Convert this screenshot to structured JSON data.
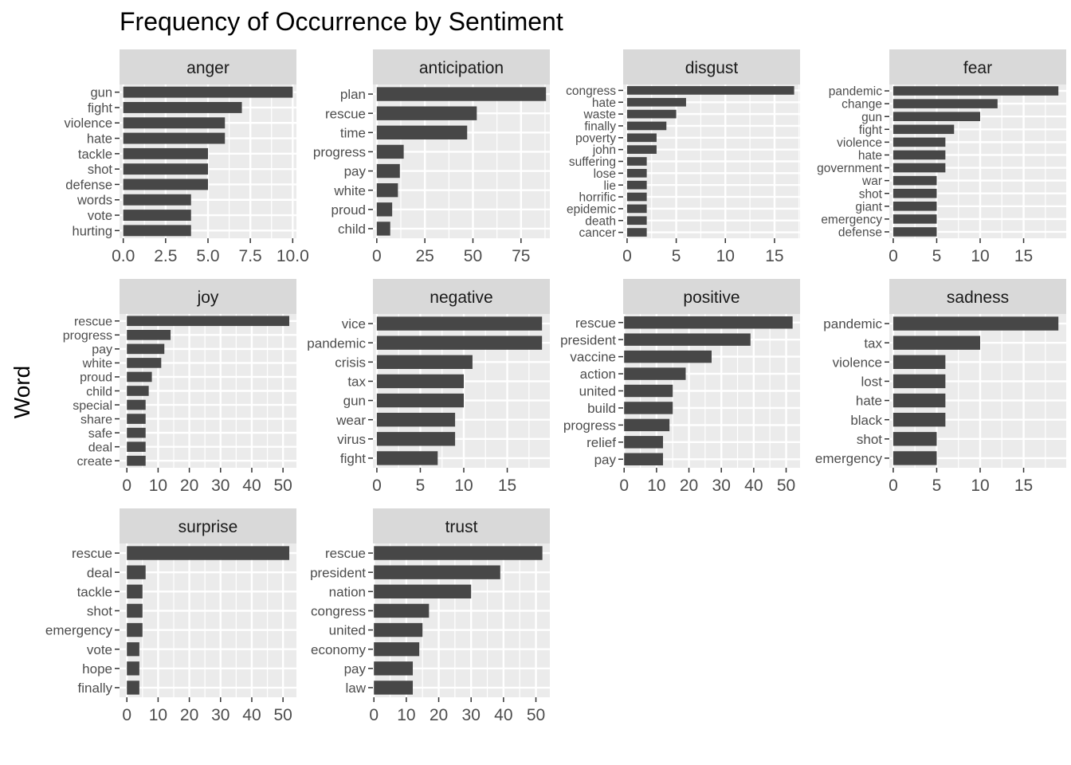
{
  "chart_data": {
    "type": "bar",
    "title": "Frequency of Occurrence by Sentiment",
    "xlabel": "",
    "ylabel": "Word",
    "orientation": "horizontal",
    "grid": true,
    "colors": {
      "bar": "#474747",
      "panel": "#ebebeb",
      "strip": "#d9d9d9",
      "grid": "#ffffff",
      "tick": "#333333"
    },
    "facets": [
      {
        "name": "anger",
        "xlim": [
          -0.22,
          10.22
        ],
        "ticks": [
          0,
          2.5,
          5,
          7.5,
          10
        ],
        "tick_labels": [
          "0.0",
          "2.5",
          "5.0",
          "7.5",
          "10.0"
        ],
        "categories": [
          "gun",
          "fight",
          "violence",
          "hate",
          "tackle",
          "shot",
          "defense",
          "words",
          "vote",
          "hurting"
        ],
        "values": [
          10,
          7,
          6,
          6,
          5,
          5,
          5,
          4,
          4,
          4
        ]
      },
      {
        "name": "anticipation",
        "xlim": [
          -2,
          90
        ],
        "ticks": [
          0,
          25,
          50,
          75
        ],
        "tick_labels": [
          "0",
          "25",
          "50",
          "75"
        ],
        "categories": [
          "plan",
          "rescue",
          "time",
          "progress",
          "pay",
          "white",
          "proud",
          "child"
        ],
        "values": [
          88,
          52,
          47,
          14,
          12,
          11,
          8,
          7
        ]
      },
      {
        "name": "disgust",
        "xlim": [
          -0.4,
          17.6
        ],
        "ticks": [
          0,
          5,
          10,
          15
        ],
        "tick_labels": [
          "0",
          "5",
          "10",
          "15"
        ],
        "categories": [
          "congress",
          "hate",
          "waste",
          "finally",
          "poverty",
          "john",
          "suffering",
          "lose",
          "lie",
          "horrific",
          "epidemic",
          "death",
          "cancer"
        ],
        "values": [
          17,
          6,
          5,
          4,
          3,
          3,
          2,
          2,
          2,
          2,
          2,
          2,
          2
        ]
      },
      {
        "name": "fear",
        "xlim": [
          -0.45,
          19.9
        ],
        "ticks": [
          0,
          5,
          10,
          15
        ],
        "tick_labels": [
          "0",
          "5",
          "10",
          "15"
        ],
        "categories": [
          "pandemic",
          "change",
          "gun",
          "fight",
          "violence",
          "hate",
          "government",
          "war",
          "shot",
          "giant",
          "emergency",
          "defense"
        ],
        "values": [
          19,
          12,
          10,
          7,
          6,
          6,
          6,
          5,
          5,
          5,
          5,
          5
        ]
      },
      {
        "name": "joy",
        "xlim": [
          -2.35,
          54.3
        ],
        "ticks": [
          0,
          10,
          20,
          30,
          40,
          50
        ],
        "tick_labels": [
          "0",
          "10",
          "20",
          "30",
          "40",
          "50"
        ],
        "categories": [
          "rescue",
          "progress",
          "pay",
          "white",
          "proud",
          "child",
          "special",
          "share",
          "safe",
          "deal",
          "create"
        ],
        "values": [
          52,
          14,
          12,
          11,
          8,
          7,
          6,
          6,
          6,
          6,
          6
        ]
      },
      {
        "name": "negative",
        "xlim": [
          -0.45,
          19.9
        ],
        "ticks": [
          0,
          5,
          10,
          15
        ],
        "tick_labels": [
          "0",
          "5",
          "10",
          "15"
        ],
        "categories": [
          "vice",
          "pandemic",
          "crisis",
          "tax",
          "gun",
          "wear",
          "virus",
          "fight"
        ],
        "values": [
          19,
          19,
          11,
          10,
          10,
          9,
          9,
          7
        ]
      },
      {
        "name": "positive",
        "xlim": [
          -0.3,
          54.3
        ],
        "ticks": [
          0,
          10,
          20,
          30,
          40,
          50
        ],
        "tick_labels": [
          "0",
          "10",
          "20",
          "30",
          "40",
          "50"
        ],
        "categories": [
          "rescue",
          "president",
          "vaccine",
          "action",
          "united",
          "build",
          "progress",
          "relief",
          "pay"
        ],
        "values": [
          52,
          39,
          27,
          19,
          15,
          15,
          14,
          12,
          12
        ]
      },
      {
        "name": "sadness",
        "xlim": [
          -0.45,
          19.9
        ],
        "ticks": [
          0,
          5,
          10,
          15
        ],
        "tick_labels": [
          "0",
          "5",
          "10",
          "15"
        ],
        "categories": [
          "pandemic",
          "tax",
          "violence",
          "lost",
          "hate",
          "black",
          "shot",
          "emergency"
        ],
        "values": [
          19,
          10,
          6,
          6,
          6,
          6,
          5,
          5
        ]
      },
      {
        "name": "surprise",
        "xlim": [
          -2.35,
          54.3
        ],
        "ticks": [
          0,
          10,
          20,
          30,
          40,
          50
        ],
        "tick_labels": [
          "0",
          "10",
          "20",
          "30",
          "40",
          "50"
        ],
        "categories": [
          "rescue",
          "deal",
          "tackle",
          "shot",
          "emergency",
          "vote",
          "hope",
          "finally"
        ],
        "values": [
          52,
          6,
          5,
          5,
          5,
          4,
          4,
          4
        ]
      },
      {
        "name": "trust",
        "xlim": [
          -0.3,
          54.3
        ],
        "ticks": [
          0,
          10,
          20,
          30,
          40,
          50
        ],
        "tick_labels": [
          "0",
          "10",
          "20",
          "30",
          "40",
          "50"
        ],
        "categories": [
          "rescue",
          "president",
          "nation",
          "congress",
          "united",
          "economy",
          "pay",
          "law"
        ],
        "values": [
          52,
          39,
          30,
          17,
          15,
          14,
          12,
          12
        ]
      }
    ]
  }
}
